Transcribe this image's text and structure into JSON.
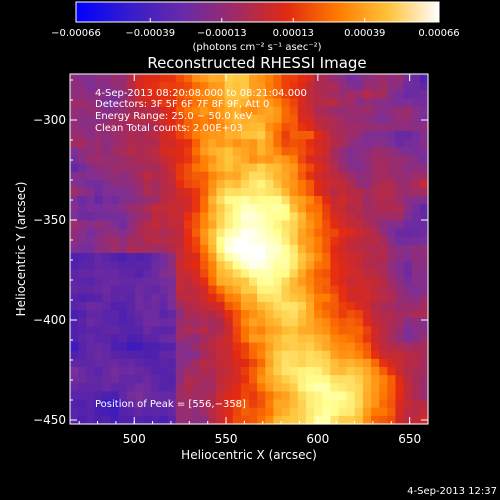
{
  "chart_data": {
    "type": "heatmap",
    "title": "Reconstructed RHESSI Image",
    "xlabel": "Heliocentric X (arcsec)",
    "ylabel": "Heliocentric Y (arcsec)",
    "xlim": [
      465,
      660
    ],
    "ylim": [
      -452,
      -277
    ],
    "x_ticks": [
      500,
      550,
      600,
      650
    ],
    "x_tick_labels": [
      "500",
      "550",
      "600",
      "650"
    ],
    "y_ticks": [
      -300,
      -350,
      -400,
      -450
    ],
    "y_tick_labels": [
      "−300",
      "−350",
      "−400",
      "−450"
    ],
    "colorbar": {
      "range": [
        -0.00066,
        0.00066
      ],
      "ticks": [
        -0.00066,
        -0.00039,
        -0.00013,
        0.00013,
        0.00039,
        0.00066
      ],
      "tick_labels": [
        "−0.00066",
        "−0.00039",
        "−0.00013",
        "0.00013",
        "0.00039",
        "0.00066"
      ],
      "unit_label": "(photons cm⁻² s⁻¹ asec⁻²)"
    },
    "annotations": [
      "4-Sep-2013 08:20:08.000 to 08:21:04.000",
      "Detectors: 3F 5F 6F 7F 8F 9F, Att 0",
      "Energy Range: 25.0 − 50.0 keV",
      "Clean     Total counts: 2.00E+03"
    ],
    "peak_label": "Position of Peak = [556,−358]",
    "peak": {
      "x": 556,
      "y": -358
    },
    "timestamp": "4-Sep-2013 12:37",
    "grid": false,
    "colormap": [
      "#0000ff",
      "#4a1fb0",
      "#7a2f9a",
      "#b42a48",
      "#e42a10",
      "#ff7a00",
      "#ffc23a",
      "#ffff90",
      "#ffffff"
    ]
  }
}
